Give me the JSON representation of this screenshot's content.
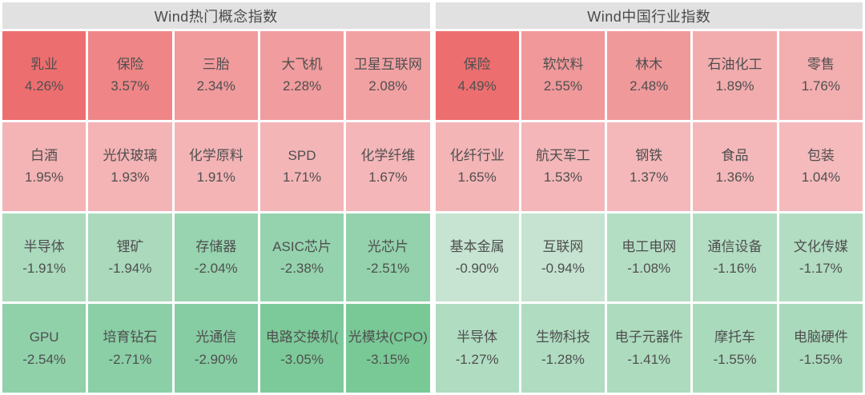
{
  "palette": {
    "header_bg": "#e1e1e1",
    "header_text": "#4a4a4a",
    "cell_text": "#4f4f4f",
    "gap": "#ffffff",
    "max_red": "#ed6e6f",
    "max_green": "#79c996"
  },
  "chart_data": [
    {
      "type": "heatmap",
      "title": "Wind热门概念指数",
      "columns": 5,
      "rows": 4,
      "cells": [
        {
          "name": "乳业",
          "value": "4.26%",
          "pct": 4.26,
          "color": "#ed6e6f"
        },
        {
          "name": "保险",
          "value": "3.57%",
          "pct": 3.57,
          "color": "#ef8586"
        },
        {
          "name": "三胎",
          "value": "2.34%",
          "pct": 2.34,
          "color": "#f19b9d"
        },
        {
          "name": "大飞机",
          "value": "2.28%",
          "pct": 2.28,
          "color": "#f19c9e"
        },
        {
          "name": "卫星互联网",
          "value": "2.08%",
          "pct": 2.08,
          "color": "#f2a1a3"
        },
        {
          "name": "白酒",
          "value": "1.95%",
          "pct": 1.95,
          "color": "#f4b3b5"
        },
        {
          "name": "光伏玻璃",
          "value": "1.93%",
          "pct": 1.93,
          "color": "#f4b3b5"
        },
        {
          "name": "化学原料",
          "value": "1.91%",
          "pct": 1.91,
          "color": "#f4b4b6"
        },
        {
          "name": "SPD",
          "value": "1.71%",
          "pct": 1.71,
          "color": "#f4b5b7"
        },
        {
          "name": "化学纤维",
          "value": "1.67%",
          "pct": 1.67,
          "color": "#f4b6b8"
        },
        {
          "name": "半导体",
          "value": "-1.91%",
          "pct": -1.91,
          "color": "#abdabd"
        },
        {
          "name": "锂矿",
          "value": "-1.94%",
          "pct": -1.94,
          "color": "#aad9bc"
        },
        {
          "name": "存储器",
          "value": "-2.04%",
          "pct": -2.04,
          "color": "#97d4af"
        },
        {
          "name": "ASIC芯片",
          "value": "-2.38%",
          "pct": -2.38,
          "color": "#95d3ae"
        },
        {
          "name": "光芯片",
          "value": "-2.51%",
          "pct": -2.51,
          "color": "#93d2ac"
        },
        {
          "name": "GPU",
          "value": "-2.54%",
          "pct": -2.54,
          "color": "#90d1aa"
        },
        {
          "name": "培育钻石",
          "value": "-2.71%",
          "pct": -2.71,
          "color": "#8bcfa6"
        },
        {
          "name": "光通信",
          "value": "-2.90%",
          "pct": -2.9,
          "color": "#87cda3"
        },
        {
          "name": "电路交换机(",
          "value": "-3.05%",
          "pct": -3.05,
          "color": "#7cca99"
        },
        {
          "name": "光模块(CPO)",
          "value": "-3.15%",
          "pct": -3.15,
          "color": "#79c996"
        }
      ]
    },
    {
      "type": "heatmap",
      "title": "Wind中国行业指数",
      "columns": 5,
      "rows": 4,
      "cells": [
        {
          "name": "保险",
          "value": "4.49%",
          "pct": 4.49,
          "color": "#ed6e6f"
        },
        {
          "name": "软饮料",
          "value": "2.55%",
          "pct": 2.55,
          "color": "#f0989a"
        },
        {
          "name": "林木",
          "value": "2.48%",
          "pct": 2.48,
          "color": "#f0999b"
        },
        {
          "name": "石油化工",
          "value": "1.89%",
          "pct": 1.89,
          "color": "#f3acae"
        },
        {
          "name": "零售",
          "value": "1.76%",
          "pct": 1.76,
          "color": "#f3aeb0"
        },
        {
          "name": "化纤行业",
          "value": "1.65%",
          "pct": 1.65,
          "color": "#f4b5b7"
        },
        {
          "name": "航天军工",
          "value": "1.53%",
          "pct": 1.53,
          "color": "#f4b6b8"
        },
        {
          "name": "钢铁",
          "value": "1.37%",
          "pct": 1.37,
          "color": "#f4b8ba"
        },
        {
          "name": "食品",
          "value": "1.36%",
          "pct": 1.36,
          "color": "#f4b8ba"
        },
        {
          "name": "包装",
          "value": "1.04%",
          "pct": 1.04,
          "color": "#f5babc"
        },
        {
          "name": "基本金属",
          "value": "-0.90%",
          "pct": -0.9,
          "color": "#c6e4d1"
        },
        {
          "name": "互联网",
          "value": "-0.94%",
          "pct": -0.94,
          "color": "#c5e3d0"
        },
        {
          "name": "电工电网",
          "value": "-1.08%",
          "pct": -1.08,
          "color": "#b4dec4"
        },
        {
          "name": "通信设备",
          "value": "-1.16%",
          "pct": -1.16,
          "color": "#b2ddc2"
        },
        {
          "name": "文化传媒",
          "value": "-1.17%",
          "pct": -1.17,
          "color": "#b2ddc2"
        },
        {
          "name": "半导体",
          "value": "-1.27%",
          "pct": -1.27,
          "color": "#b0dcc1"
        },
        {
          "name": "生物科技",
          "value": "-1.28%",
          "pct": -1.28,
          "color": "#b0dcc1"
        },
        {
          "name": "电子元器件",
          "value": "-1.41%",
          "pct": -1.41,
          "color": "#addbbe"
        },
        {
          "name": "摩托车",
          "value": "-1.55%",
          "pct": -1.55,
          "color": "#aadabc"
        },
        {
          "name": "电脑硬件",
          "value": "-1.55%",
          "pct": -1.55,
          "color": "#aadabc"
        }
      ]
    }
  ]
}
